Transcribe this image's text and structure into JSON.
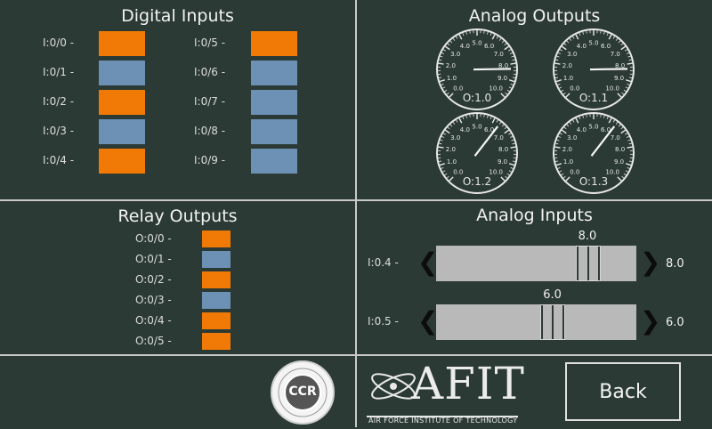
{
  "digital_inputs": {
    "title": "Digital Inputs",
    "items": [
      {
        "label": "I:0/0 -",
        "state": "on"
      },
      {
        "label": "I:0/1 -",
        "state": "off"
      },
      {
        "label": "I:0/2 -",
        "state": "on"
      },
      {
        "label": "I:0/3 -",
        "state": "off"
      },
      {
        "label": "I:0/4 -",
        "state": "on"
      },
      {
        "label": "I:0/5 -",
        "state": "on"
      },
      {
        "label": "I:0/6 -",
        "state": "off"
      },
      {
        "label": "I:0/7 -",
        "state": "off"
      },
      {
        "label": "I:0/8 -",
        "state": "off"
      },
      {
        "label": "I:0/9 -",
        "state": "off"
      }
    ]
  },
  "analog_outputs": {
    "title": "Analog Outputs",
    "scale": [
      "0.0",
      "1.0",
      "2.0",
      "3.0",
      "4.0",
      "5.0",
      "6.0",
      "7.0",
      "8.0",
      "9.0",
      "10.0"
    ],
    "gauges": [
      {
        "label": "O:1.0",
        "value": 8.3
      },
      {
        "label": "O:1.1",
        "value": 8.3
      },
      {
        "label": "O:1.2",
        "value": 6.4
      },
      {
        "label": "O:1.3",
        "value": 6.4
      }
    ]
  },
  "relay_outputs": {
    "title": "Relay Outputs",
    "items": [
      {
        "label": "O:0/0 -",
        "state": "on"
      },
      {
        "label": "O:0/1 -",
        "state": "off"
      },
      {
        "label": "O:0/2 -",
        "state": "on"
      },
      {
        "label": "O:0/3 -",
        "state": "off"
      },
      {
        "label": "O:0/4 -",
        "state": "on"
      },
      {
        "label": "O:0/5 -",
        "state": "on"
      }
    ]
  },
  "analog_inputs": {
    "title": "Analog Inputs",
    "range": [
      0,
      10
    ],
    "sliders": [
      {
        "label": "I:0.4 -",
        "value": 8.0,
        "value_text": "8.0",
        "readout": "8.0"
      },
      {
        "label": "I:0.5 -",
        "value": 6.0,
        "value_text": "6.0",
        "readout": "6.0"
      }
    ]
  },
  "footer": {
    "ccr_logo_text": "CCR",
    "afit_logo_text": "AFIT",
    "afit_subtitle": "Air Force Institute of Technology",
    "back_label": "Back"
  },
  "colors": {
    "background": "#2b3a34",
    "on": "#f07a05",
    "off": "#6d90b5"
  }
}
